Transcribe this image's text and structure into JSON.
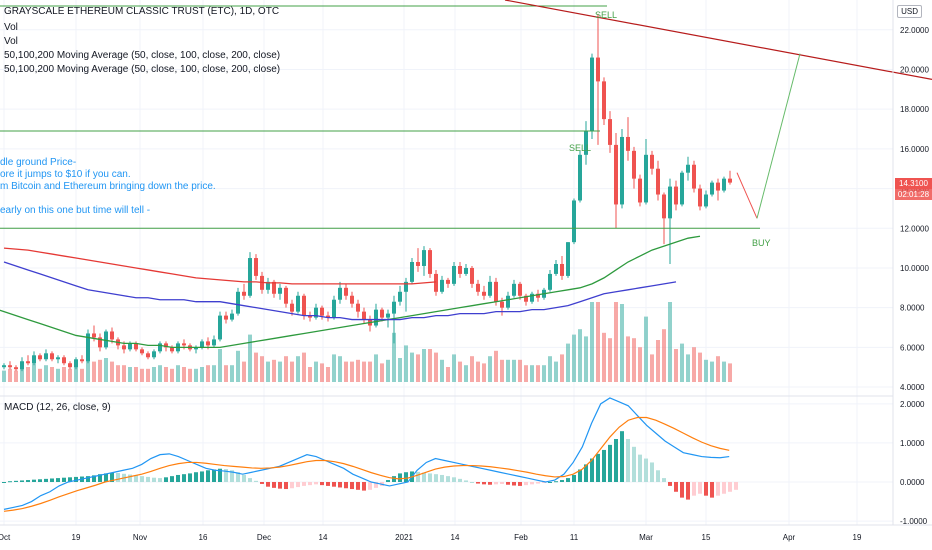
{
  "header": {
    "title": "GRAYSCALE ETHEREUM CLASSIC TRUST (ETC), 1D, OTC",
    "vol1": "Vol",
    "vol2": "Vol",
    "ma1": "50,100,200 Moving Average (50, close, 100, close, 200, close)",
    "ma2": "50,100,200 Moving Average (50, close, 100, close, 200, close)",
    "currency": "USD"
  },
  "notes": [
    "dle ground Price-",
    "ore it jumps to $10 if you can.",
    "m Bitcoin and Ethereum bringing down the price.",
    "early on this one but time will tell -"
  ],
  "annotations": {
    "sell_top": "SELL",
    "sell_mid": "SELL",
    "buy": "BUY"
  },
  "price_tag": {
    "value": "14.3100",
    "countdown": "02:01:28"
  },
  "price_axis": [
    "22.0000",
    "20.0000",
    "18.0000",
    "16.0000",
    "14.0000",
    "12.0000",
    "10.0000",
    "8.0000",
    "6.0000",
    "4.0000"
  ],
  "macd": {
    "label": "MACD (12, 26, close, 9)",
    "axis": [
      "2.0000",
      "1.0000",
      "0.0000",
      "-1.0000"
    ]
  },
  "time_axis": [
    "Oct",
    "19",
    "Nov",
    "16",
    "Dec",
    "14",
    "2021",
    "14",
    "Feb",
    "11",
    "Mar",
    "15",
    "Apr",
    "19"
  ],
  "colors": {
    "up": "#26a69a",
    "down": "#ef5350",
    "ma50": "#2e9a3e",
    "ma100": "#3f3fcf",
    "ma200": "#e53935",
    "trend": "#b71c1c",
    "macd": "#2196f3",
    "signal": "#ff7f0e",
    "note": "#2196f3"
  },
  "chart_data": {
    "type": "candlestick",
    "title": "GRAYSCALE ETHEREUM CLASSIC TRUST (ETC), 1D, OTC",
    "ylim": [
      3.6,
      23.5
    ],
    "candles": [
      [
        5.0,
        5.2,
        4.9,
        5.1
      ],
      [
        5.1,
        5.3,
        4.9,
        5.0
      ],
      [
        5.0,
        5.1,
        4.8,
        4.9
      ],
      [
        4.9,
        5.5,
        4.8,
        5.3
      ],
      [
        5.3,
        5.6,
        5.1,
        5.2
      ],
      [
        5.2,
        5.8,
        5.1,
        5.6
      ],
      [
        5.6,
        5.7,
        5.3,
        5.4
      ],
      [
        5.4,
        5.9,
        5.3,
        5.7
      ],
      [
        5.7,
        5.8,
        5.3,
        5.4
      ],
      [
        5.4,
        5.6,
        5.2,
        5.5
      ],
      [
        5.5,
        5.6,
        5.1,
        5.2
      ],
      [
        5.2,
        5.3,
        4.9,
        5.0
      ],
      [
        5.0,
        5.5,
        4.9,
        5.4
      ],
      [
        5.4,
        5.6,
        5.2,
        5.3
      ],
      [
        5.3,
        6.9,
        5.2,
        6.7
      ],
      [
        6.7,
        7.1,
        6.3,
        6.5
      ],
      [
        6.5,
        6.7,
        5.8,
        6.0
      ],
      [
        6.0,
        6.9,
        5.9,
        6.8
      ],
      [
        6.8,
        7.0,
        6.2,
        6.4
      ],
      [
        6.4,
        6.5,
        5.9,
        6.1
      ],
      [
        6.1,
        6.3,
        5.7,
        5.9
      ],
      [
        5.9,
        6.3,
        5.8,
        6.2
      ],
      [
        6.2,
        6.3,
        5.8,
        5.9
      ],
      [
        5.9,
        6.0,
        5.6,
        5.7
      ],
      [
        5.7,
        5.8,
        5.4,
        5.5
      ],
      [
        5.5,
        5.9,
        5.4,
        5.8
      ],
      [
        5.8,
        6.3,
        5.7,
        6.2
      ],
      [
        6.2,
        6.3,
        5.8,
        6.0
      ],
      [
        6.0,
        6.1,
        5.7,
        5.8
      ],
      [
        5.8,
        6.3,
        5.7,
        6.2
      ],
      [
        6.2,
        6.4,
        5.9,
        6.1
      ],
      [
        6.1,
        6.2,
        5.8,
        5.9
      ],
      [
        5.9,
        6.1,
        5.7,
        6.0
      ],
      [
        6.0,
        6.4,
        5.9,
        6.3
      ],
      [
        6.3,
        6.5,
        5.9,
        6.1
      ],
      [
        6.1,
        6.6,
        6.0,
        6.4
      ],
      [
        6.4,
        7.8,
        6.3,
        7.6
      ],
      [
        7.6,
        7.8,
        7.2,
        7.4
      ],
      [
        7.4,
        7.9,
        7.3,
        7.7
      ],
      [
        7.7,
        9.0,
        7.6,
        8.8
      ],
      [
        8.8,
        9.2,
        8.4,
        8.6
      ],
      [
        8.6,
        10.8,
        8.5,
        10.5
      ],
      [
        10.5,
        10.7,
        9.4,
        9.6
      ],
      [
        9.6,
        9.8,
        8.7,
        8.9
      ],
      [
        8.9,
        9.5,
        8.7,
        9.3
      ],
      [
        9.3,
        9.4,
        8.5,
        8.7
      ],
      [
        8.7,
        9.2,
        8.4,
        9.0
      ],
      [
        9.0,
        9.1,
        8.0,
        8.2
      ],
      [
        8.2,
        8.4,
        7.6,
        7.8
      ],
      [
        7.8,
        8.8,
        7.7,
        8.6
      ],
      [
        8.6,
        8.7,
        7.4,
        7.6
      ],
      [
        7.6,
        7.8,
        7.3,
        7.5
      ],
      [
        7.5,
        8.2,
        7.4,
        8.0
      ],
      [
        8.0,
        8.1,
        7.4,
        7.6
      ],
      [
        7.6,
        7.8,
        7.3,
        7.5
      ],
      [
        7.5,
        8.6,
        7.4,
        8.4
      ],
      [
        8.4,
        9.3,
        8.2,
        9.0
      ],
      [
        9.0,
        9.2,
        8.4,
        8.6
      ],
      [
        8.6,
        8.8,
        8.0,
        8.2
      ],
      [
        8.2,
        8.4,
        7.5,
        7.8
      ],
      [
        7.8,
        8.0,
        7.2,
        7.4
      ],
      [
        7.4,
        7.6,
        6.8,
        7.1
      ],
      [
        7.1,
        8.2,
        7.0,
        7.9
      ],
      [
        7.9,
        8.0,
        7.3,
        7.5
      ],
      [
        7.5,
        7.9,
        7.0,
        7.7
      ],
      [
        7.7,
        8.6,
        6.2,
        8.3
      ],
      [
        8.3,
        9.1,
        8.1,
        8.8
      ],
      [
        8.8,
        9.5,
        7.8,
        9.3
      ],
      [
        9.3,
        10.5,
        9.2,
        10.3
      ],
      [
        10.3,
        11.0,
        9.8,
        10.1
      ],
      [
        10.1,
        11.1,
        9.6,
        10.9
      ],
      [
        10.9,
        11.0,
        9.5,
        9.7
      ],
      [
        9.7,
        9.9,
        8.6,
        8.8
      ],
      [
        8.8,
        9.6,
        8.7,
        9.4
      ],
      [
        9.4,
        9.5,
        9.0,
        9.2
      ],
      [
        9.2,
        10.3,
        9.1,
        10.1
      ],
      [
        10.1,
        10.3,
        9.5,
        9.7
      ],
      [
        9.7,
        10.2,
        9.6,
        10.0
      ],
      [
        10.0,
        10.1,
        9.0,
        9.2
      ],
      [
        9.2,
        9.4,
        8.6,
        8.8
      ],
      [
        8.8,
        9.1,
        8.4,
        8.6
      ],
      [
        8.6,
        9.6,
        8.5,
        9.3
      ],
      [
        9.3,
        9.5,
        8.1,
        8.3
      ],
      [
        8.3,
        8.5,
        7.6,
        8.0
      ],
      [
        8.0,
        8.8,
        7.9,
        8.6
      ],
      [
        8.6,
        9.4,
        8.5,
        9.2
      ],
      [
        9.2,
        9.3,
        8.4,
        8.6
      ],
      [
        8.6,
        8.7,
        8.1,
        8.3
      ],
      [
        8.3,
        8.8,
        8.2,
        8.7
      ],
      [
        8.7,
        8.9,
        8.3,
        8.5
      ],
      [
        8.5,
        9.0,
        8.4,
        8.9
      ],
      [
        8.9,
        9.9,
        8.8,
        9.7
      ],
      [
        9.7,
        10.4,
        9.6,
        10.2
      ],
      [
        10.2,
        10.6,
        9.4,
        9.6
      ],
      [
        9.6,
        11.3,
        9.5,
        11.3
      ],
      [
        11.3,
        13.5,
        11.2,
        13.4
      ],
      [
        13.4,
        15.9,
        13.3,
        15.7
      ],
      [
        15.7,
        17.4,
        15.2,
        16.9
      ],
      [
        16.9,
        20.8,
        16.5,
        20.6
      ],
      [
        20.6,
        22.8,
        16.2,
        19.4
      ],
      [
        19.4,
        19.6,
        17.2,
        17.5
      ],
      [
        17.5,
        17.9,
        15.8,
        16.2
      ],
      [
        16.2,
        16.8,
        12.0,
        13.2
      ],
      [
        13.2,
        17.0,
        13.0,
        16.6
      ],
      [
        16.6,
        17.6,
        15.4,
        15.9
      ],
      [
        15.9,
        16.1,
        14.0,
        14.5
      ],
      [
        14.5,
        14.7,
        13.1,
        13.3
      ],
      [
        13.3,
        16.5,
        13.2,
        15.7
      ],
      [
        15.7,
        15.9,
        14.7,
        15.0
      ],
      [
        15.0,
        15.4,
        13.4,
        13.7
      ],
      [
        13.7,
        13.8,
        11.2,
        12.5
      ],
      [
        12.5,
        14.5,
        10.2,
        14.1
      ],
      [
        14.1,
        14.4,
        12.9,
        13.2
      ],
      [
        13.2,
        14.9,
        13.1,
        14.8
      ],
      [
        14.8,
        15.6,
        14.4,
        15.2
      ],
      [
        15.2,
        15.4,
        13.8,
        14.0
      ],
      [
        14.0,
        14.2,
        12.9,
        13.1
      ],
      [
        13.1,
        13.9,
        13.0,
        13.7
      ],
      [
        13.7,
        14.4,
        13.6,
        14.3
      ],
      [
        14.3,
        14.5,
        13.4,
        13.9
      ],
      [
        13.9,
        14.6,
        13.8,
        14.5
      ],
      [
        14.5,
        14.9,
        14.2,
        14.3
      ]
    ],
    "ma50": [
      8.6,
      8.5,
      8.4,
      8.2,
      8.0,
      7.8,
      7.6,
      7.4,
      7.2,
      7.0,
      6.8,
      6.6,
      6.5,
      6.4,
      6.3,
      6.2,
      6.2,
      6.1,
      6.1,
      6.0,
      6.0,
      6.0,
      6.0,
      6.0,
      6.1,
      6.2,
      6.3,
      6.4,
      6.5,
      6.6,
      6.7,
      6.8,
      6.9,
      7.0,
      7.1,
      7.2,
      7.3,
      7.4,
      7.5,
      7.6,
      7.7,
      7.8,
      7.9,
      8.0,
      8.1,
      8.2,
      8.3,
      8.4,
      8.5,
      8.6,
      8.7,
      8.8,
      8.9,
      9.0,
      9.2,
      9.5,
      9.9,
      10.3,
      10.6,
      10.9,
      11.1,
      11.3,
      11.5,
      11.6
    ],
    "ma100": [
      10.3,
      10.1,
      9.9,
      9.7,
      9.5,
      9.3,
      9.1,
      8.9,
      8.8,
      8.7,
      8.6,
      8.5,
      8.5,
      8.4,
      8.4,
      8.4,
      8.3,
      8.3,
      8.3,
      8.2,
      8.1,
      8.0,
      7.9,
      7.8,
      7.7,
      7.6,
      7.6,
      7.5,
      7.5,
      7.4,
      7.4,
      7.4,
      7.4,
      7.4,
      7.5,
      7.5,
      7.6,
      7.6,
      7.7,
      7.7,
      7.7,
      7.8,
      7.8,
      7.8,
      7.9,
      7.9,
      8.0,
      8.1,
      8.3,
      8.5,
      8.7,
      8.8,
      8.9,
      9.0,
      9.1,
      9.2,
      9.3
    ],
    "ma200": [
      11.0,
      10.95,
      10.9,
      10.8,
      10.7,
      10.6,
      10.5,
      10.4,
      10.3,
      10.2,
      10.1,
      10.0,
      9.9,
      9.8,
      9.7,
      9.6,
      9.5,
      9.45,
      9.4,
      9.35,
      9.3,
      9.3,
      9.25,
      9.25,
      9.2,
      9.2,
      9.2,
      9.2,
      9.2,
      9.2,
      9.2,
      9.2,
      9.2,
      9.2,
      9.2,
      9.25,
      9.3
    ],
    "macd": {
      "ylim": [
        -1.1,
        2.2
      ],
      "histogram": [
        0.0,
        0.02,
        0.03,
        0.04,
        0.05,
        0.06,
        0.07,
        0.08,
        0.09,
        0.1,
        0.11,
        0.12,
        0.13,
        0.14,
        0.15,
        0.17,
        0.2,
        0.22,
        0.24,
        0.23,
        0.21,
        0.19,
        0.17,
        0.15,
        0.13,
        0.11,
        0.1,
        0.12,
        0.15,
        0.18,
        0.2,
        0.22,
        0.25,
        0.27,
        0.3,
        0.32,
        0.34,
        0.33,
        0.3,
        0.25,
        0.18,
        0.1,
        0.03,
        -0.05,
        -0.12,
        -0.15,
        -0.17,
        -0.18,
        -0.16,
        -0.13,
        -0.1,
        -0.08,
        -0.06,
        -0.08,
        -0.1,
        -0.12,
        -0.14,
        -0.16,
        -0.18,
        -0.2,
        -0.22,
        -0.2,
        -0.15,
        -0.1,
        0.05,
        0.15,
        0.22,
        0.25,
        0.27,
        0.26,
        0.24,
        0.22,
        0.2,
        0.18,
        0.15,
        0.12,
        0.08,
        0.04,
        0.0,
        -0.04,
        -0.06,
        -0.07,
        -0.06,
        -0.05,
        -0.07,
        -0.09,
        -0.1,
        -0.08,
        -0.06,
        -0.04,
        -0.02,
        0.0,
        0.02,
        0.05,
        0.1,
        0.18,
        0.32,
        0.45,
        0.6,
        0.72,
        0.82,
        0.95,
        1.1,
        1.3,
        1.1,
        0.9,
        0.7,
        0.6,
        0.5,
        0.3,
        0.1,
        -0.1,
        -0.25,
        -0.4,
        -0.45,
        -0.35,
        -0.3,
        -0.35,
        -0.4,
        -0.35,
        -0.3,
        -0.25,
        -0.2
      ],
      "macd_line": [
        -0.7,
        -0.65,
        -0.6,
        -0.5,
        -0.35,
        -0.25,
        -0.1,
        0.0,
        0.05,
        0.1,
        0.15,
        0.2,
        0.25,
        0.3,
        0.35,
        0.45,
        0.6,
        0.7,
        0.72,
        0.65,
        0.55,
        0.45,
        0.35,
        0.3,
        0.28,
        0.25,
        0.2,
        0.25,
        0.3,
        0.35,
        0.4,
        0.5,
        0.6,
        0.7,
        0.65,
        0.55,
        0.45,
        0.35,
        0.2,
        0.1,
        0.0,
        -0.05,
        -0.1,
        -0.05,
        0.0,
        0.3,
        0.5,
        0.6,
        0.55,
        0.5,
        0.45,
        0.4,
        0.35,
        0.3,
        0.25,
        0.2,
        0.15,
        0.1,
        0.05,
        0.0,
        0.05,
        0.2,
        0.5,
        0.9,
        1.5,
        2.0,
        2.15,
        2.05,
        1.95,
        1.7,
        1.45,
        1.25,
        1.05,
        0.9,
        0.75,
        0.7,
        0.65,
        0.63,
        0.62,
        0.65
      ],
      "signal_line": [
        -0.75,
        -0.72,
        -0.68,
        -0.62,
        -0.55,
        -0.47,
        -0.38,
        -0.3,
        -0.22,
        -0.15,
        -0.08,
        0.0,
        0.05,
        0.1,
        0.15,
        0.2,
        0.27,
        0.35,
        0.42,
        0.47,
        0.5,
        0.5,
        0.48,
        0.45,
        0.42,
        0.4,
        0.38,
        0.36,
        0.35,
        0.36,
        0.38,
        0.42,
        0.47,
        0.52,
        0.55,
        0.55,
        0.52,
        0.47,
        0.4,
        0.32,
        0.24,
        0.17,
        0.11,
        0.08,
        0.1,
        0.17,
        0.25,
        0.33,
        0.38,
        0.41,
        0.42,
        0.42,
        0.41,
        0.39,
        0.36,
        0.33,
        0.29,
        0.25,
        0.2,
        0.16,
        0.13,
        0.14,
        0.2,
        0.33,
        0.55,
        0.85,
        1.15,
        1.4,
        1.58,
        1.65,
        1.65,
        1.58,
        1.48,
        1.37,
        1.25,
        1.13,
        1.02,
        0.93,
        0.86,
        0.81
      ]
    }
  }
}
